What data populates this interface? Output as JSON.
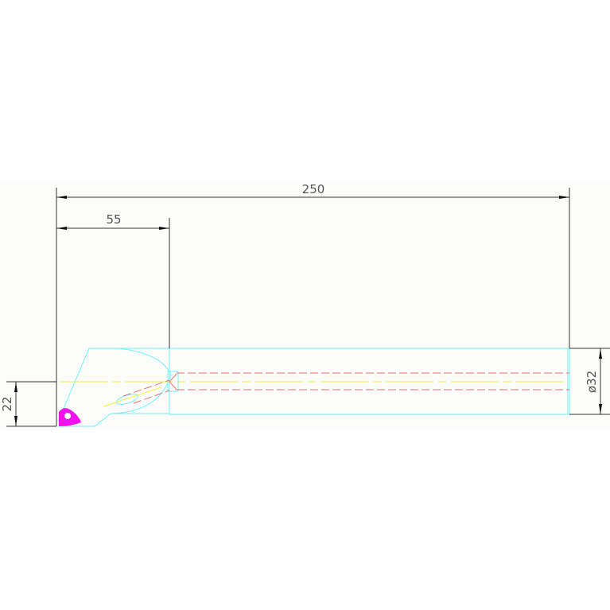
{
  "drawing": {
    "dimensions": {
      "overall_length": "250",
      "head_length": "55",
      "height_offset": "22",
      "shank_diameter": "ø32"
    },
    "colors": {
      "background": "#fcfdfa",
      "outline": "#6ff0f8",
      "center_line": "#f4f040",
      "hidden_line": "#f07070",
      "insert": "#f010f0",
      "dimension": "#333333"
    }
  }
}
